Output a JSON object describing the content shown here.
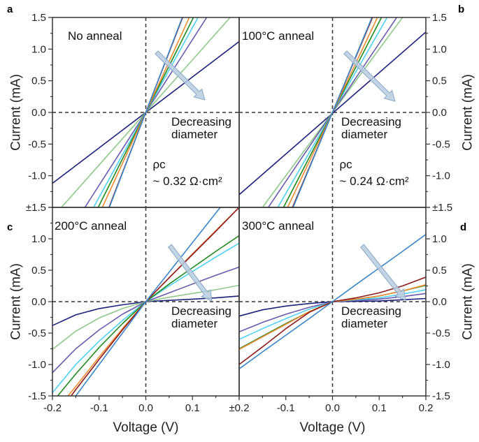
{
  "chart_data": [
    {
      "panel": "a",
      "type": "line",
      "title": "No anneal",
      "annotation": [
        "Decreasing",
        "diameter"
      ],
      "rho": "ρc",
      "rho_value": "~ 0.32 Ω·cm²",
      "x": [
        -0.2,
        0.2
      ],
      "series": [
        {
          "color": "#1a1f7a",
          "y": [
            -1.12,
            1.12
          ]
        },
        {
          "color": "#8fc98a",
          "y": [
            -1.66,
            1.66
          ]
        },
        {
          "color": "#6a5aad",
          "y": [
            -2.3,
            2.3
          ]
        },
        {
          "color": "#4fd0f5",
          "y": [
            -2.68,
            2.68
          ]
        },
        {
          "color": "#1e8a1e",
          "y": [
            -2.94,
            2.94
          ]
        },
        {
          "color": "#f28a30",
          "y": [
            -3.22,
            3.22
          ]
        },
        {
          "color": "#8b1a1a",
          "y": [
            -3.8,
            3.8
          ]
        },
        {
          "color": "#3b86c8",
          "y": [
            -3.84,
            3.84
          ]
        }
      ]
    },
    {
      "panel": "b",
      "type": "line",
      "title": "100°C anneal",
      "annotation": [
        "Decreasing",
        "diameter"
      ],
      "rho": "ρc",
      "rho_value": "~ 0.24 Ω·cm²",
      "x": [
        -0.2,
        0.2
      ],
      "series": [
        {
          "color": "#1a1f7a",
          "y": [
            -1.3,
            1.27
          ]
        },
        {
          "color": "#8fc98a",
          "y": [
            -2.0,
            2.0
          ]
        },
        {
          "color": "#6a5aad",
          "y": [
            -2.18,
            2.18
          ]
        },
        {
          "color": "#4fd0f5",
          "y": [
            -2.56,
            2.56
          ]
        },
        {
          "color": "#1e8a1e",
          "y": [
            -2.86,
            2.86
          ]
        },
        {
          "color": "#f28a30",
          "y": [
            -3.12,
            3.12
          ]
        },
        {
          "color": "#8b1a1a",
          "y": [
            -3.5,
            3.5
          ]
        },
        {
          "color": "#3b86c8",
          "y": [
            -3.55,
            3.55
          ]
        }
      ]
    },
    {
      "panel": "c",
      "type": "line",
      "title": "200°C anneal",
      "annotation": [
        "Decreasing",
        "diameter"
      ],
      "x": [
        -0.2,
        -0.15,
        -0.1,
        -0.05,
        0,
        0.05,
        0.1,
        0.15,
        0.2
      ],
      "series": [
        {
          "color": "#1a1f7a",
          "y": [
            -0.38,
            -0.21,
            -0.11,
            -0.05,
            0,
            0.02,
            0.04,
            0.06,
            0.09
          ]
        },
        {
          "color": "#8fc98a",
          "y": [
            -0.76,
            -0.47,
            -0.26,
            -0.11,
            0,
            0.07,
            0.13,
            0.19,
            0.26
          ]
        },
        {
          "color": "#6a5aad",
          "y": [
            -1.13,
            -0.75,
            -0.45,
            -0.2,
            0,
            0.14,
            0.28,
            0.42,
            0.55
          ]
        },
        {
          "color": "#4fd0f5",
          "y": [
            -1.45,
            -1.0,
            -0.63,
            -0.3,
            0,
            0.25,
            0.48,
            0.71,
            0.93
          ]
        },
        {
          "color": "#1e8a1e",
          "y": [
            -1.6,
            -1.15,
            -0.73,
            -0.35,
            0,
            0.28,
            0.54,
            0.8,
            1.05
          ]
        },
        {
          "color": "#f28a30",
          "y": [
            -1.8,
            -1.35,
            -0.88,
            -0.43,
            0,
            0.38,
            0.76,
            1.13,
            1.5
          ]
        },
        {
          "color": "#8b1a1a",
          "y": [
            -1.9,
            -1.4,
            -0.92,
            -0.45,
            0,
            0.38,
            0.75,
            1.12,
            1.5
          ]
        },
        {
          "color": "#3b86c8",
          "y": [
            -2.0,
            -1.5,
            -1.0,
            -0.5,
            0,
            0.47,
            0.94,
            1.41,
            1.88
          ]
        }
      ]
    },
    {
      "panel": "d",
      "type": "line",
      "title": "300°C anneal",
      "annotation": [
        "Decreasing",
        "diameter"
      ],
      "x": [
        -0.2,
        -0.15,
        -0.1,
        -0.05,
        0,
        0.05,
        0.1,
        0.15,
        0.2
      ],
      "series": [
        {
          "color": "#1a1f7a",
          "y": [
            -0.23,
            -0.13,
            -0.07,
            -0.03,
            0,
            0.005,
            0.01,
            0.03,
            0.05
          ]
        },
        {
          "color": "#6a5aad",
          "y": [
            -0.48,
            -0.33,
            -0.2,
            -0.09,
            0,
            0.02,
            0.04,
            0.08,
            0.13
          ]
        },
        {
          "color": "#4fd0f5",
          "y": [
            -0.6,
            -0.43,
            -0.27,
            -0.12,
            0,
            0.03,
            0.06,
            0.12,
            0.19
          ]
        },
        {
          "color": "#1e8a1e",
          "y": [
            -0.75,
            -0.55,
            -0.35,
            -0.16,
            0,
            0.04,
            0.09,
            0.17,
            0.26
          ]
        },
        {
          "color": "#f28a30",
          "y": [
            -0.76,
            -0.56,
            -0.36,
            -0.16,
            0,
            0.04,
            0.09,
            0.17,
            0.27
          ]
        },
        {
          "color": "#8b1a1a",
          "y": [
            -1.0,
            -0.72,
            -0.43,
            -0.17,
            0,
            0.06,
            0.14,
            0.25,
            0.39
          ]
        },
        {
          "color": "#3b86c8",
          "y": [
            -1.07,
            -0.8,
            -0.535,
            -0.27,
            0,
            0.27,
            0.535,
            0.8,
            1.07
          ]
        }
      ]
    }
  ],
  "axes": {
    "xlabel": "Voltage (V)",
    "ylabel": "Current (mA)",
    "xlim": [
      -0.2,
      0.2
    ],
    "ylim": [
      -1.5,
      1.5
    ],
    "x_ticks_left": [
      "-0.2",
      "-0.1",
      "0.0",
      "0.1",
      "±0.2"
    ],
    "x_ticks_right": [
      "-0.1",
      "0.0",
      "0.1",
      "0.2"
    ],
    "y_ticks_top": [
      "1.5",
      "1.0",
      "0.5",
      "0.0",
      "-0.5",
      "-1.0"
    ],
    "y_tick_shared": "±1.5",
    "y_ticks_bottom": [
      "1.0",
      "0.5",
      "0.0",
      "-0.5",
      "-1.0",
      "-1.5"
    ],
    "grid": false
  },
  "arrow_color": "#b9cde0"
}
